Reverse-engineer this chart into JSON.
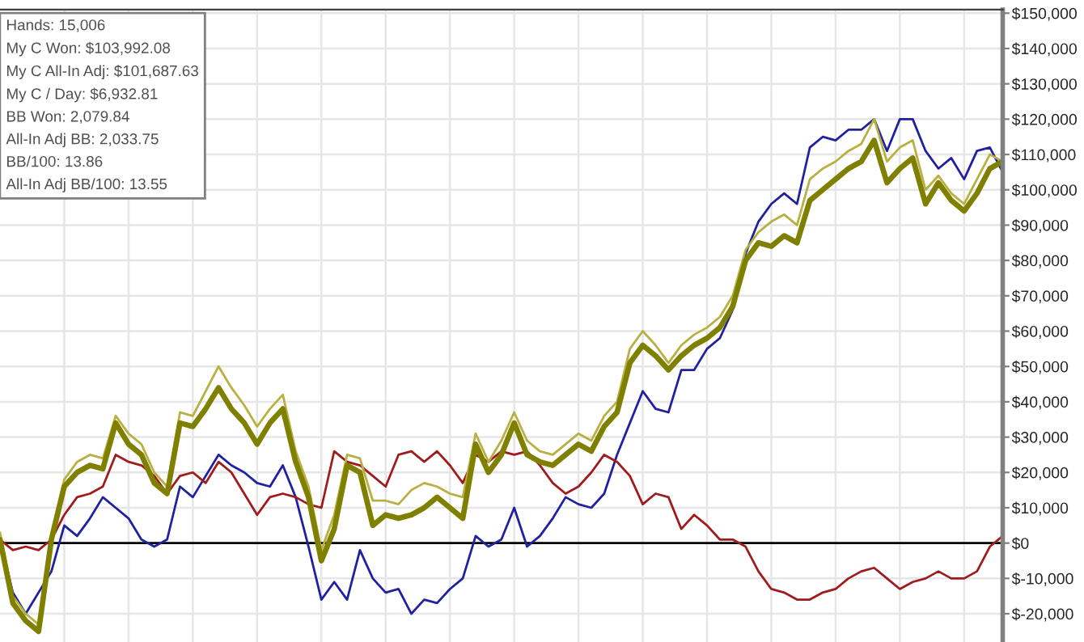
{
  "chart_data": {
    "type": "line",
    "categories": [
      null,
      null,
      null,
      null,
      null,
      null,
      null,
      null,
      null,
      null,
      null,
      null,
      null,
      null,
      null,
      null,
      null,
      null,
      null,
      null,
      null,
      null,
      null,
      null,
      null,
      null,
      null,
      null,
      null,
      null,
      null,
      null,
      null,
      null,
      null,
      null,
      null,
      null,
      null,
      null,
      null,
      null,
      null,
      null,
      null,
      null,
      null,
      null,
      null,
      null,
      null,
      null,
      null,
      null,
      null,
      null,
      null,
      null,
      null,
      null,
      null,
      null,
      null,
      null,
      null,
      null,
      null,
      null,
      null,
      null,
      null,
      null,
      null,
      null,
      null,
      null,
      null,
      null,
      null
    ],
    "series": [
      {
        "color": "#2020a0",
        "values": [
          1000,
          -14000,
          -20000,
          null,
          -8000,
          5000,
          2000,
          7000,
          13000,
          10000,
          7000,
          1000,
          -1000,
          1000,
          16000,
          13000,
          19000,
          25000,
          22000,
          20000,
          17000,
          16000,
          22000,
          13000,
          -1000,
          -16000,
          -11000,
          -16000,
          -2000,
          -10000,
          -14000,
          -13000,
          -20000,
          -16000,
          -17000,
          -13000,
          -10000,
          2000,
          -1000,
          1000,
          10000,
          -1000,
          2000,
          7000,
          13000,
          11000,
          10000,
          14000,
          25000,
          34000,
          43000,
          38000,
          37000,
          49000,
          49000,
          55000,
          58000,
          66000,
          82000,
          91000,
          96000,
          99000,
          96000,
          112000,
          115000,
          114000,
          117000,
          117000,
          120000,
          111000,
          120000,
          120000,
          111000,
          106000,
          109000,
          103000,
          111000,
          112000,
          105000
        ]
      },
      {
        "color": "#a01c1c",
        "values": [
          1000,
          -2000,
          -1000,
          -2000,
          1000,
          8000,
          13000,
          14000,
          16000,
          25000,
          23000,
          22000,
          19000,
          14000,
          19000,
          20000,
          17000,
          23000,
          20000,
          14000,
          8000,
          13000,
          14000,
          13000,
          11000,
          10000,
          26000,
          23000,
          22000,
          19000,
          16000,
          25000,
          26000,
          23000,
          26000,
          22000,
          17000,
          25000,
          23000,
          26000,
          25000,
          26000,
          22000,
          17000,
          14000,
          16000,
          20000,
          25000,
          23000,
          19000,
          11000,
          14000,
          13000,
          4000,
          8000,
          5000,
          1000,
          1000,
          -1000,
          -8000,
          -13000,
          -14000,
          -16000,
          -16000,
          -14000,
          -13000,
          -10000,
          -8000,
          -7000,
          -10000,
          -13000,
          -11000,
          -10000,
          -8000,
          -10000,
          -10000,
          -8000,
          -1000,
          2000
        ]
      },
      {
        "color": "#b8b040",
        "values": [
          3000,
          -15000,
          -20000,
          -23000,
          3000,
          18000,
          23000,
          25000,
          24000,
          36000,
          31000,
          28000,
          20000,
          16000,
          37000,
          36000,
          43000,
          50000,
          44000,
          39000,
          33000,
          38000,
          42000,
          26000,
          16000,
          -2000,
          8000,
          25000,
          24000,
          12000,
          12000,
          11000,
          15000,
          17000,
          16000,
          14000,
          13000,
          31000,
          23000,
          29000,
          37000,
          29000,
          26000,
          25000,
          28000,
          31000,
          29000,
          36000,
          40000,
          55000,
          60000,
          56000,
          51000,
          56000,
          59000,
          61000,
          64000,
          70000,
          83000,
          88000,
          91000,
          93000,
          90000,
          103000,
          106000,
          108000,
          111000,
          113000,
          120000,
          108000,
          112000,
          114000,
          100000,
          104000,
          99000,
          96000,
          103000,
          110000,
          108000
        ]
      },
      {
        "color": "#808000",
        "values": [
          1000,
          -17000,
          -22000,
          -25000,
          1000,
          16000,
          20000,
          22000,
          21000,
          34000,
          28000,
          25000,
          17000,
          14000,
          34000,
          33000,
          38000,
          44000,
          38000,
          34000,
          28000,
          34000,
          38000,
          23000,
          13000,
          -5000,
          4000,
          22000,
          20000,
          5000,
          8000,
          7000,
          8000,
          10000,
          13000,
          10000,
          7000,
          28000,
          20000,
          25000,
          34000,
          25000,
          23000,
          22000,
          25000,
          28000,
          26000,
          33000,
          37000,
          51000,
          56000,
          53000,
          49000,
          53000,
          56000,
          58000,
          61000,
          67000,
          80000,
          85000,
          84000,
          87000,
          85000,
          97000,
          100000,
          103000,
          106000,
          108000,
          114000,
          102000,
          106000,
          109000,
          96000,
          102000,
          97000,
          94000,
          99000,
          106000,
          108000
        ]
      }
    ],
    "ylim": [
      -28000,
      151000
    ],
    "yticks": [
      {
        "value": 150000,
        "label": "$150,000"
      },
      {
        "value": 140000,
        "label": "$140,000"
      },
      {
        "value": 130000,
        "label": "$130,000"
      },
      {
        "value": 120000,
        "label": "$120,000"
      },
      {
        "value": 110000,
        "label": "$110,000"
      },
      {
        "value": 100000,
        "label": "$100,000"
      },
      {
        "value": 90000,
        "label": "$90,000"
      },
      {
        "value": 80000,
        "label": "$80,000"
      },
      {
        "value": 70000,
        "label": "$70,000"
      },
      {
        "value": 60000,
        "label": "$60,000"
      },
      {
        "value": 50000,
        "label": "$50,000"
      },
      {
        "value": 40000,
        "label": "$40,000"
      },
      {
        "value": 30000,
        "label": "$30,000"
      },
      {
        "value": 20000,
        "label": "$20,000"
      },
      {
        "value": 10000,
        "label": "$10,000"
      },
      {
        "value": 0,
        "label": "$0"
      },
      {
        "value": -10000,
        "label": "$-10,000"
      },
      {
        "value": -20000,
        "label": "$-20,000"
      }
    ],
    "ref_lines": [
      {
        "axis": "y",
        "value": 0,
        "color": "#000000"
      }
    ],
    "annotations": [
      "Hands: 15,006",
      "My C Won: $103,992.08",
      "My C All-In Adj: $101,687.63",
      "My C / Day: $6,932.81",
      "BB Won: 2,079.84",
      "All-In Adj BB: 2,033.75",
      "BB/100: 13.86",
      "All-In Adj BB/100: 13.55"
    ],
    "grid": true,
    "legend": false,
    "tick_labels": "y",
    "marker": "none",
    "line_style": "solid"
  }
}
